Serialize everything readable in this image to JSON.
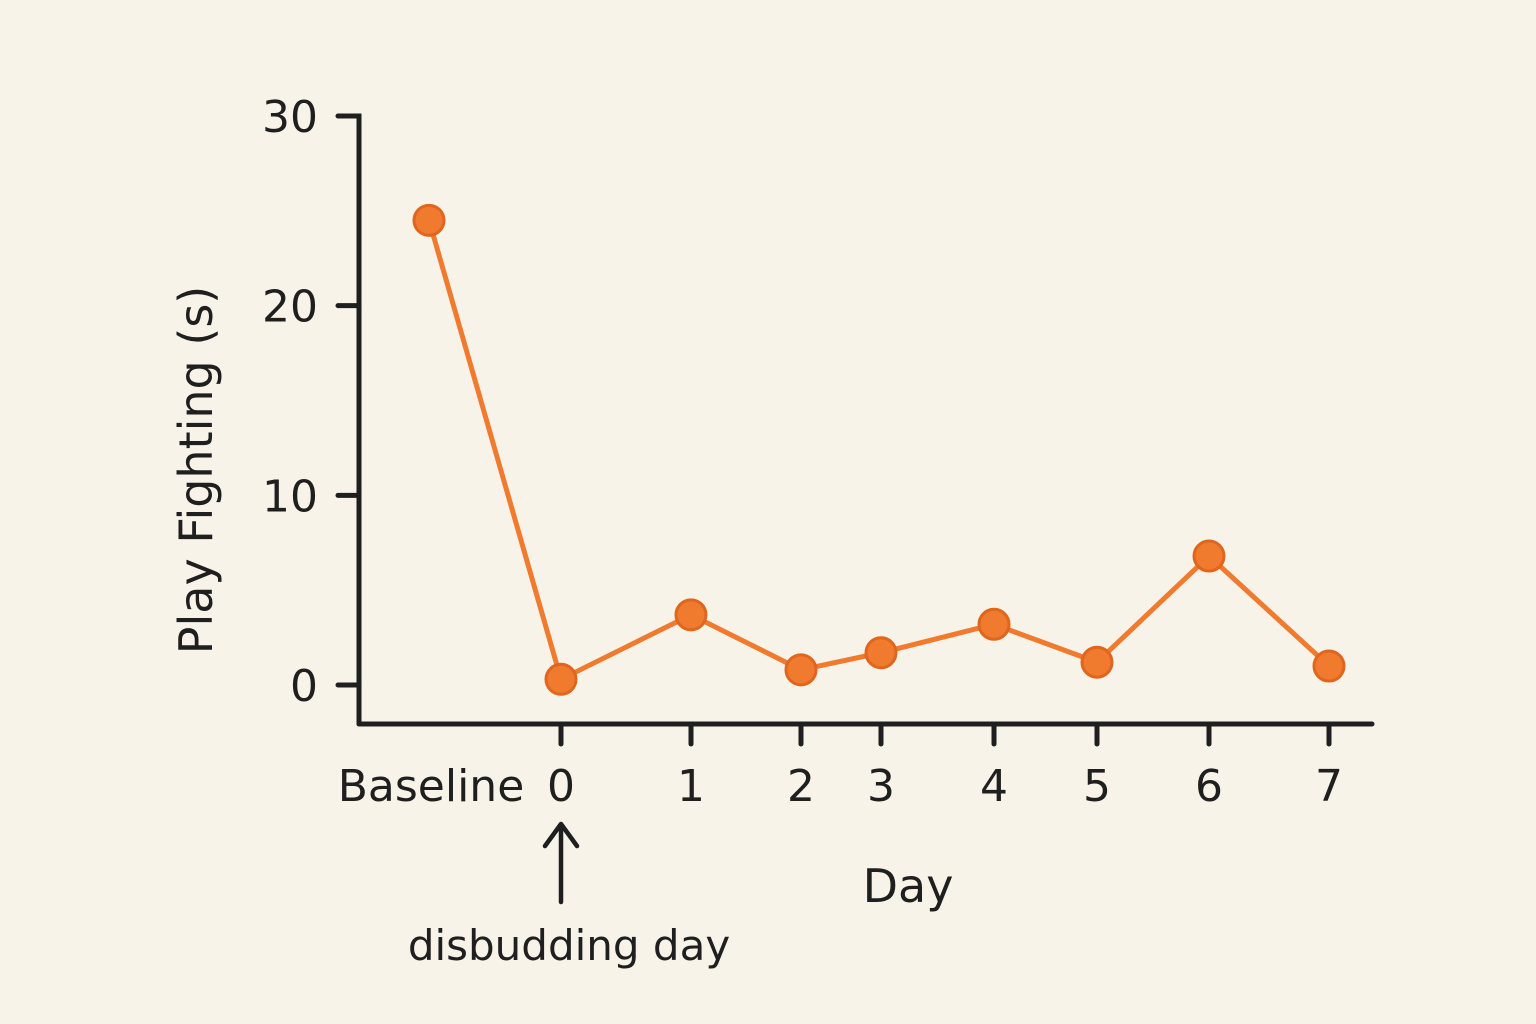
{
  "chart_data": {
    "type": "line",
    "title": "",
    "xlabel": "Day",
    "ylabel": "Play Fighting (s)",
    "ylim": [
      0,
      30
    ],
    "yticks": [
      0,
      10,
      20,
      30
    ],
    "grid": false,
    "x_ticks": [
      "Baseline",
      "0",
      "1",
      "2",
      "3",
      "4",
      "5",
      "6",
      "7"
    ],
    "series": [
      {
        "x": [
          "Baseline",
          "0",
          "1",
          "2",
          "3",
          "4",
          "5",
          "6",
          "7"
        ],
        "values": [
          24.5,
          0.3,
          3.7,
          0.8,
          1.7,
          3.2,
          1.2,
          6.8,
          1.0
        ],
        "color": "#f07a2e"
      }
    ],
    "annotation": {
      "text": "disbudding day",
      "points_to": "0"
    }
  }
}
